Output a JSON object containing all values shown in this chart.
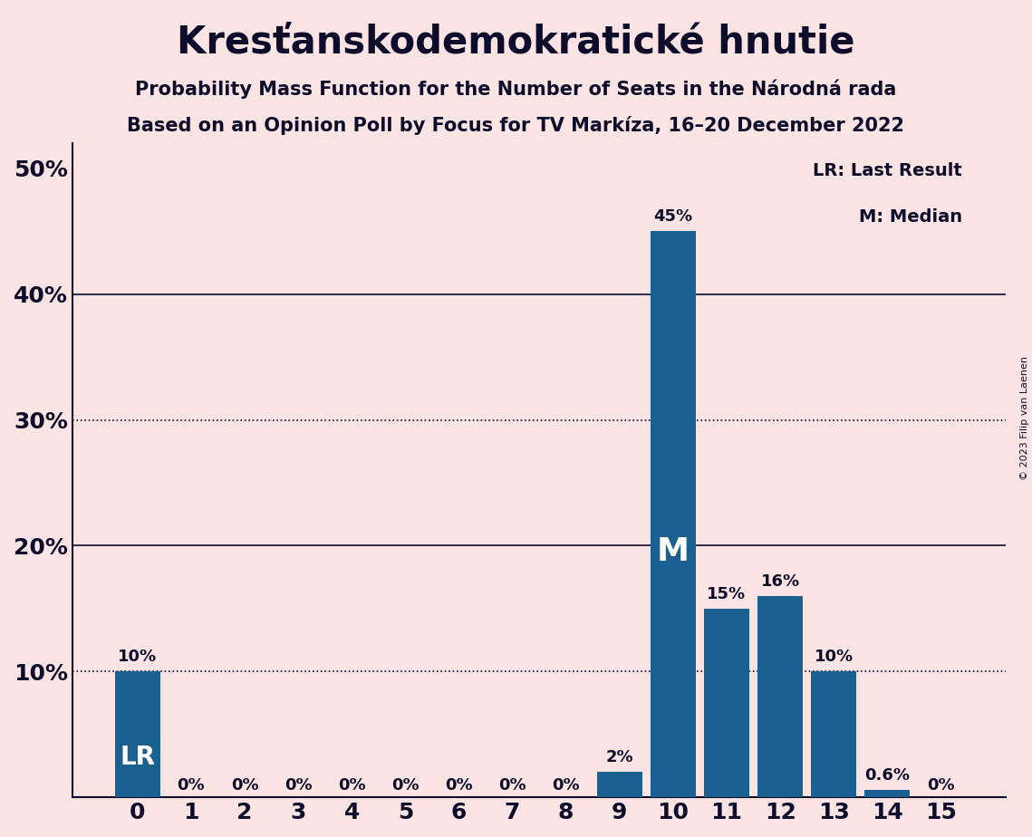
{
  "title": "Kresťanskodemokratické hnutie",
  "subtitle1": "Probability Mass Function for the Number of Seats in the Národná rada",
  "subtitle2": "Based on an Opinion Poll by Focus for TV Markíza, 16–20 December 2022",
  "categories": [
    0,
    1,
    2,
    3,
    4,
    5,
    6,
    7,
    8,
    9,
    10,
    11,
    12,
    13,
    14,
    15
  ],
  "values": [
    0.1,
    0.0,
    0.0,
    0.0,
    0.0,
    0.0,
    0.0,
    0.0,
    0.0,
    0.02,
    0.45,
    0.15,
    0.16,
    0.1,
    0.006,
    0.0
  ],
  "bar_labels": [
    "10%",
    "0%",
    "0%",
    "0%",
    "0%",
    "0%",
    "0%",
    "0%",
    "0%",
    "2%",
    "45%",
    "15%",
    "16%",
    "10%",
    "0.6%",
    "0%"
  ],
  "bar_color": "#1a6090",
  "background_color": "#fce4e4",
  "text_color": "#0d0d2b",
  "lr_bar_index": 0,
  "median_bar_index": 10,
  "lr_label": "LR",
  "median_label": "M",
  "legend_lr": "LR: Last Result",
  "legend_m": "M: Median",
  "copyright": "© 2023 Filip van Laenen",
  "dotted_lines": [
    0.1,
    0.3
  ],
  "solid_lines": [
    0.2,
    0.4
  ],
  "ylim": [
    0,
    0.52
  ]
}
